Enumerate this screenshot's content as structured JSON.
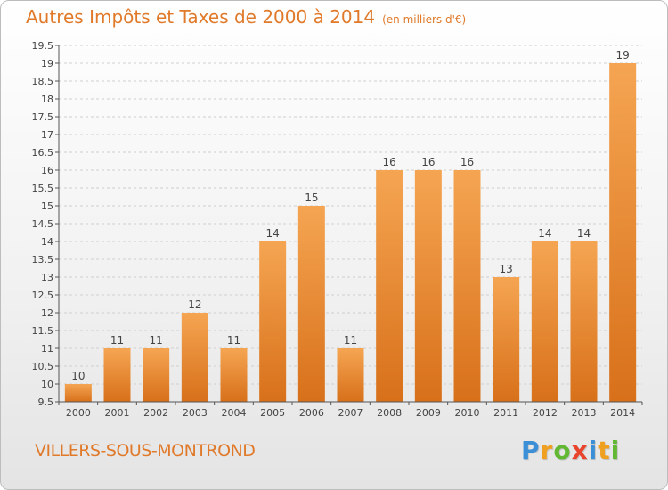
{
  "title": "Autres Impôts et Taxes de 2000 à 2014",
  "subtitle": "(en milliers d'€)",
  "commune": "VILLERS-SOUS-MONTROND",
  "logo": {
    "letters": [
      "P",
      "r",
      "o",
      "x",
      "i",
      "t",
      "i"
    ],
    "colors": [
      "#3a8fd6",
      "#f0a020",
      "#62b832",
      "#e8452c",
      "#3a8fd6",
      "#f0a020",
      "#62b832"
    ]
  },
  "colors": {
    "bar_top": "#f5a552",
    "bar_bottom": "#d8701a",
    "accent": "#e07a2a"
  },
  "chart_data": {
    "type": "bar",
    "categories": [
      "2000",
      "2001",
      "2002",
      "2003",
      "2004",
      "2005",
      "2006",
      "2007",
      "2008",
      "2009",
      "2010",
      "2011",
      "2012",
      "2013",
      "2014"
    ],
    "values": [
      10,
      11,
      11,
      12,
      11,
      14,
      15,
      11,
      16,
      16,
      16,
      13,
      14,
      14,
      19
    ],
    "data_labels": [
      "10",
      "11",
      "11",
      "12",
      "11",
      "14",
      "15",
      "11",
      "16",
      "16",
      "16",
      "13",
      "14",
      "14",
      "19"
    ],
    "ylim": [
      9.5,
      19.5
    ],
    "yticks": [
      "9.5",
      "10",
      "10.5",
      "11",
      "11.5",
      "12",
      "12.5",
      "13",
      "13.5",
      "14",
      "14.5",
      "15",
      "15.5",
      "16",
      "16.5",
      "17",
      "17.5",
      "18",
      "18.5",
      "19",
      "19.5"
    ],
    "grid": "horizontal dashed",
    "xlabel": "",
    "ylabel": ""
  }
}
